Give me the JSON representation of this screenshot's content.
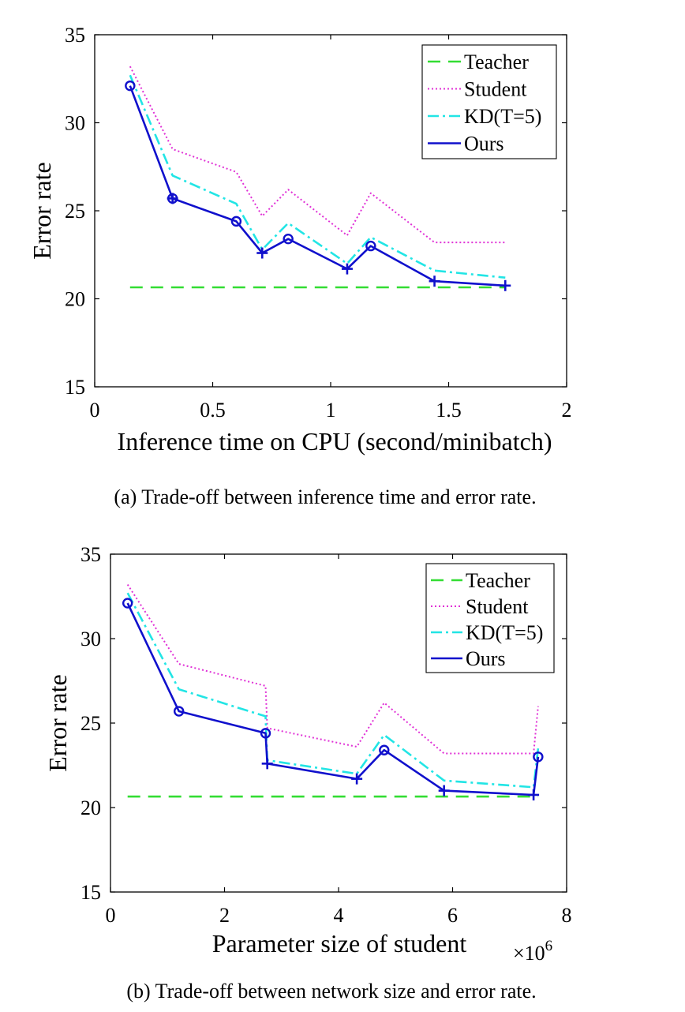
{
  "figure": {
    "caption_a": "(a) Trade-off between inference time and error rate.",
    "caption_b": "(b) Trade-off between network size and error rate.",
    "legend_labels": [
      "Teacher",
      "Student",
      "KD(T=5)",
      "Ours"
    ],
    "multiplier_label_base": "×10",
    "multiplier_label_exp": "6"
  },
  "colors": {
    "teacher": "#33dd33",
    "student": "#e031d6",
    "kd": "#22e5e5",
    "ours": "#1010cc",
    "axis": "#000000"
  },
  "chart_data": [
    {
      "type": "line",
      "xlabel": "Inference time on CPU (second/minibatch)",
      "ylabel": "Error rate",
      "xlim": [
        0,
        2
      ],
      "ylim": [
        15,
        35
      ],
      "xticks": [
        0,
        0.5,
        1,
        1.5,
        2
      ],
      "xtick_labels": [
        "0",
        "0.5",
        "1",
        "1.5",
        "2"
      ],
      "yticks": [
        15,
        20,
        25,
        30,
        35
      ],
      "ytick_labels": [
        "15",
        "20",
        "25",
        "30",
        "35"
      ],
      "legend_position": "top-right",
      "grid": false,
      "series": [
        {
          "name": "Teacher",
          "style": "dashed",
          "x": [
            0.15,
            1.74
          ],
          "y": [
            20.65,
            20.65
          ]
        },
        {
          "name": "Student",
          "style": "dotted",
          "x": [
            0.15,
            0.33,
            0.6,
            0.71,
            0.82,
            1.07,
            1.17,
            1.44,
            1.74
          ],
          "y": [
            33.2,
            28.5,
            27.2,
            24.7,
            26.2,
            23.6,
            26.0,
            23.2,
            23.2
          ]
        },
        {
          "name": "KD(T=5)",
          "style": "dashdot",
          "x": [
            0.15,
            0.33,
            0.6,
            0.71,
            0.82,
            1.07,
            1.17,
            1.44,
            1.74
          ],
          "y": [
            32.7,
            27.0,
            25.4,
            22.8,
            24.3,
            22.0,
            23.5,
            21.6,
            21.2
          ]
        },
        {
          "name": "Ours",
          "style": "solid",
          "x": [
            0.15,
            0.33,
            0.6,
            0.71,
            0.82,
            1.07,
            1.17,
            1.44,
            1.74
          ],
          "y": [
            32.1,
            25.7,
            24.4,
            22.6,
            23.4,
            21.7,
            23.0,
            21.0,
            20.75
          ],
          "markers": [
            "circle",
            "both",
            "circle",
            "plus",
            "circle",
            "plus",
            "circle",
            "plus",
            "plus"
          ]
        }
      ]
    },
    {
      "type": "line",
      "xlabel": "Parameter size of student",
      "ylabel": "Error rate",
      "xlim": [
        0,
        8
      ],
      "ylim": [
        15,
        35
      ],
      "xticks": [
        0,
        2,
        4,
        6,
        8
      ],
      "xtick_labels": [
        "0",
        "2",
        "4",
        "6",
        "8"
      ],
      "yticks": [
        15,
        20,
        25,
        30,
        35
      ],
      "ytick_labels": [
        "15",
        "20",
        "25",
        "30",
        "35"
      ],
      "x_multiplier": "1e6",
      "legend_position": "top-right",
      "grid": false,
      "series": [
        {
          "name": "Teacher",
          "style": "dashed",
          "x": [
            0.3,
            7.5
          ],
          "y": [
            20.65,
            20.65
          ]
        },
        {
          "name": "Student",
          "style": "dotted",
          "x": [
            0.3,
            1.2,
            2.72,
            2.75,
            4.32,
            4.8,
            5.85,
            7.42,
            7.5
          ],
          "y": [
            33.2,
            28.5,
            27.2,
            24.7,
            23.6,
            26.2,
            23.2,
            23.2,
            26.0
          ]
        },
        {
          "name": "KD(T=5)",
          "style": "dashdot",
          "x": [
            0.3,
            1.2,
            2.72,
            2.75,
            4.32,
            4.8,
            5.85,
            7.42,
            7.5
          ],
          "y": [
            32.7,
            27.0,
            25.4,
            22.8,
            22.0,
            24.3,
            21.6,
            21.2,
            23.5
          ]
        },
        {
          "name": "Ours",
          "style": "solid",
          "x": [
            0.3,
            1.2,
            2.72,
            2.75,
            4.32,
            4.8,
            5.85,
            7.42,
            7.5
          ],
          "y": [
            32.1,
            25.7,
            24.4,
            22.6,
            21.7,
            23.4,
            21.0,
            20.75,
            23.0
          ],
          "markers": [
            "circle",
            "circle",
            "circle",
            "plus",
            "plus",
            "circle",
            "plus",
            "plus",
            "circle"
          ]
        }
      ]
    }
  ]
}
